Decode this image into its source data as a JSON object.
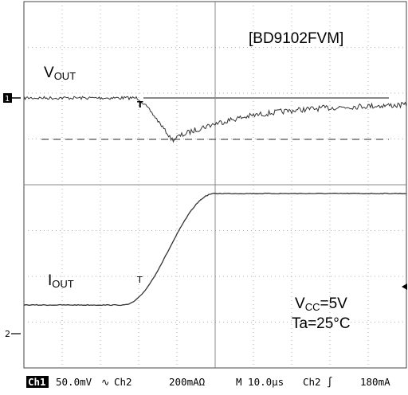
{
  "screen": {
    "part_number": "[BD9102FVM]",
    "vout_label": {
      "main": "V",
      "sub": "OUT"
    },
    "iout_label": {
      "main": "I",
      "sub": "OUT"
    },
    "conditions": [
      {
        "main": "V",
        "sub": "CC",
        "rest": "=5V"
      },
      {
        "main": "Ta=25°C"
      }
    ],
    "markers": {
      "ch1": "1",
      "ch2": "2",
      "trigger": "T"
    }
  },
  "status_bar": {
    "ch1": "Ch1",
    "ch1_scale": "50.0mV",
    "ch1_coupling": "∿",
    "ch2": "Ch2",
    "ch2_scale": "200mAΩ",
    "timebase": "M 10.0µs",
    "trigger_source": "Ch2",
    "trigger_slope": "∫",
    "trigger_level": "180mA"
  }
}
